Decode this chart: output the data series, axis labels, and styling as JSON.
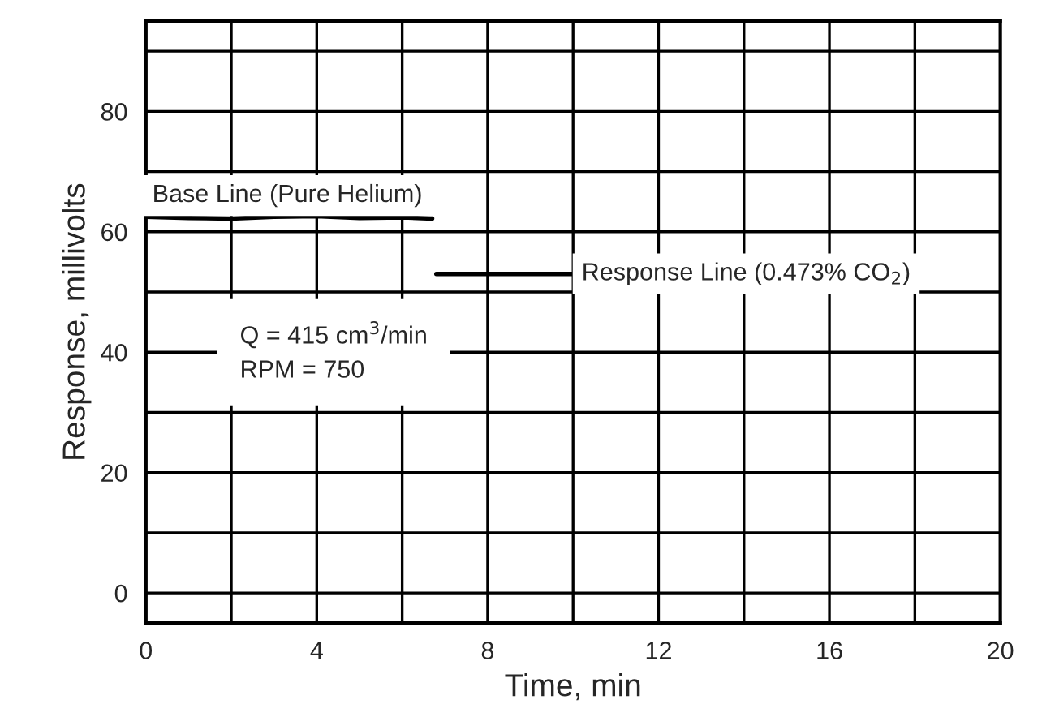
{
  "chart_data": {
    "type": "line",
    "xlabel": "Time, min",
    "ylabel": "Response, millivolts",
    "series": [
      {
        "name": "Base Line (Pure Helium)",
        "color": "#000000",
        "x": [
          0,
          1,
          2,
          3,
          4,
          5,
          6,
          6.7
        ],
        "values": [
          62.5,
          62.3,
          62.2,
          62.5,
          62.6,
          62.3,
          62.4,
          62.2
        ]
      },
      {
        "name": "Response Line (0.473% CO$_{2}$)",
        "color": "#000000",
        "x": [
          6.8,
          10
        ],
        "values": [
          53,
          53
        ]
      }
    ],
    "annotations": [
      "Q = 415 cm$^{3}$/min",
      "RPM = 750"
    ],
    "xlim": [
      0,
      20
    ],
    "ylim": [
      -5,
      95
    ],
    "xticks": [
      0,
      {
        "value": 2,
        "label": null
      },
      4,
      {
        "value": 6,
        "label": null
      },
      8,
      {
        "value": 10,
        "label": null
      },
      12,
      {
        "value": 14,
        "label": null
      },
      16,
      {
        "value": 18,
        "label": null
      },
      20
    ],
    "yticks": [
      0,
      {
        "value": 10,
        "label": null
      },
      20,
      {
        "value": 30,
        "label": null
      },
      40,
      {
        "value": 50,
        "label": null
      },
      60,
      {
        "value": 70,
        "label": null
      },
      80,
      {
        "value": 90,
        "label": null
      }
    ],
    "grid": true,
    "legend": false,
    "marker": "none",
    "line_style": "solid"
  }
}
